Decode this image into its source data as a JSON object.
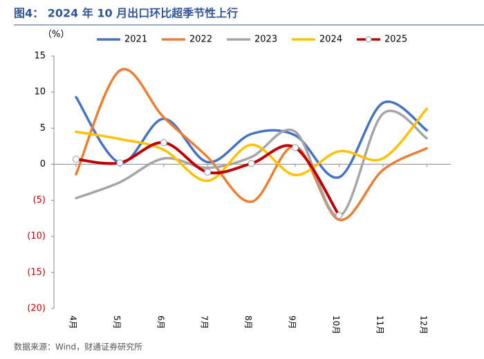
{
  "chart_data": {
    "type": "line",
    "title": "图4： 2024 年 10 月出口环比超季节性上行",
    "y_label": "（%）",
    "source": "数据来源：Wind，财通证券研究所",
    "categories": [
      "4月",
      "5月",
      "6月",
      "7月",
      "8月",
      "9月",
      "10月",
      "11月",
      "12月"
    ],
    "series": [
      {
        "name": "2021",
        "color": "#4472c4",
        "values": [
          9.3,
          0.2,
          6.3,
          0.3,
          4.2,
          4.0,
          -1.8,
          8.5,
          4.7
        ]
      },
      {
        "name": "2022",
        "color": "#ed7d31",
        "values": [
          -1.4,
          13.0,
          6.5,
          1.0,
          -5.2,
          2.5,
          -7.7,
          -0.8,
          2.2
        ]
      },
      {
        "name": "2023",
        "color": "#a5a5a5",
        "values": [
          -4.7,
          -2.5,
          0.8,
          -0.5,
          1.0,
          4.5,
          -7.2,
          7.0,
          3.6
        ]
      },
      {
        "name": "2024",
        "color": "#ffc000",
        "values": [
          4.5,
          3.5,
          2.0,
          -2.3,
          2.7,
          -1.5,
          1.8,
          0.8,
          7.7
        ]
      },
      {
        "name": "2025",
        "color": "#c00000",
        "markers": true,
        "values": [
          0.7,
          0.2,
          3.0,
          -1.1,
          0.1,
          2.3,
          -7.1,
          null,
          null
        ]
      }
    ],
    "ylim": [
      -20,
      15
    ],
    "yticks": [
      15,
      10,
      5,
      0,
      {
        "value": -5,
        "label": "(5)"
      },
      {
        "value": -10,
        "label": "(10)"
      },
      {
        "value": -15,
        "label": "(15)"
      },
      {
        "value": -20,
        "label": "(20)"
      }
    ],
    "legend": "top"
  }
}
